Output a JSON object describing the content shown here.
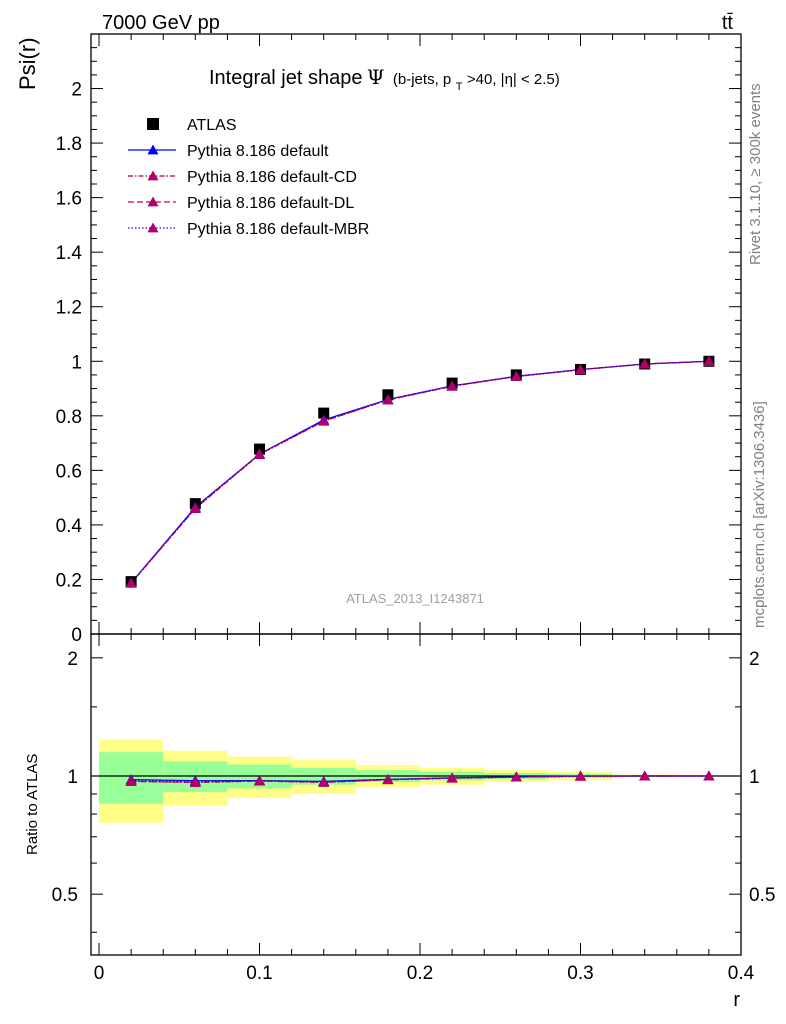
{
  "header": {
    "left": "7000 GeV pp",
    "right": "tt̄"
  },
  "side_labels": {
    "rivet": "Rivet 3.1.10, ≥ 300k events",
    "mcplots": "mcplots.cern.ch [arXiv:1306.3436]"
  },
  "chart_data": {
    "type": "line",
    "title": "Integral jet shape Ψ (b-jets, p_T>40, |η| < 2.5)",
    "title_parts": {
      "main": "Integral jet shape",
      "psi": "Ψ",
      "open": "(b-jets, p",
      "sub": "T",
      "rest": ">40, |η| < 2.5)"
    },
    "analysis_label": "ATLAS_2013_I1243871",
    "xlabel": "r",
    "ylabel": "Psi(r)",
    "ratio_ylabel": "Ratio to ATLAS",
    "xlim": [
      -0.005,
      0.4
    ],
    "ylim": [
      0,
      2.2
    ],
    "ratio_ylim": [
      0.35,
      2.3
    ],
    "x_ticks": [
      "0",
      "0.1",
      "0.2",
      "0.3",
      "0.4"
    ],
    "x_tick_values": [
      0,
      0.1,
      0.2,
      0.3,
      0.4
    ],
    "y_ticks": [
      "0",
      "0.2",
      "0.4",
      "0.6",
      "0.8",
      "1",
      "1.2",
      "1.4",
      "1.6",
      "1.8",
      "2"
    ],
    "y_tick_values": [
      0,
      0.2,
      0.4,
      0.6,
      0.8,
      1,
      1.2,
      1.4,
      1.6,
      1.8,
      2
    ],
    "ratio_ticks": [
      "0.5",
      "1",
      "2"
    ],
    "ratio_tick_values": [
      0.5,
      1,
      2
    ],
    "bin_edges": [
      0,
      0.04,
      0.08,
      0.12,
      0.16,
      0.2,
      0.24,
      0.28,
      0.32,
      0.36,
      0.4
    ],
    "x": [
      0.02,
      0.06,
      0.1,
      0.14,
      0.18,
      0.22,
      0.26,
      0.3,
      0.34,
      0.38
    ],
    "data": {
      "name": "ATLAS",
      "values": [
        0.192,
        0.478,
        0.678,
        0.81,
        0.877,
        0.92,
        0.95,
        0.97,
        0.99,
        1.0
      ]
    },
    "ratio_bands": {
      "green_rel": [
        0.15,
        0.09,
        0.07,
        0.05,
        0.035,
        0.025,
        0.018,
        0.012,
        0.005,
        0.002
      ],
      "yellow_rel": [
        0.24,
        0.16,
        0.12,
        0.1,
        0.065,
        0.05,
        0.035,
        0.025,
        0.008,
        0.003
      ],
      "green_color": "#99ff99",
      "yellow_color": "#ffff88"
    },
    "series": [
      {
        "name": "Pythia 8.186 default",
        "color": "#0000ff",
        "dash": "solid",
        "values": [
          0.188,
          0.465,
          0.66,
          0.785,
          0.86,
          0.91,
          0.945,
          0.97,
          0.99,
          1.0
        ]
      },
      {
        "name": "Pythia 8.186 default-CD",
        "color": "#b00030",
        "dash": "dashdot",
        "values": [
          0.186,
          0.46,
          0.658,
          0.78,
          0.858,
          0.908,
          0.944,
          0.969,
          0.99,
          1.0
        ]
      },
      {
        "name": "Pythia 8.186 default-DL",
        "color": "#cc0066",
        "dash": "dashed",
        "values": [
          0.186,
          0.461,
          0.659,
          0.781,
          0.858,
          0.909,
          0.944,
          0.969,
          0.99,
          1.0
        ]
      },
      {
        "name": "Pythia 8.186 default-MBR",
        "color": "#3300cc",
        "dash": "dotted",
        "values": [
          0.187,
          0.462,
          0.66,
          0.782,
          0.859,
          0.909,
          0.944,
          0.969,
          0.99,
          1.0
        ]
      }
    ],
    "marker_fill": "#b0006a",
    "legend_position": "top-left"
  }
}
